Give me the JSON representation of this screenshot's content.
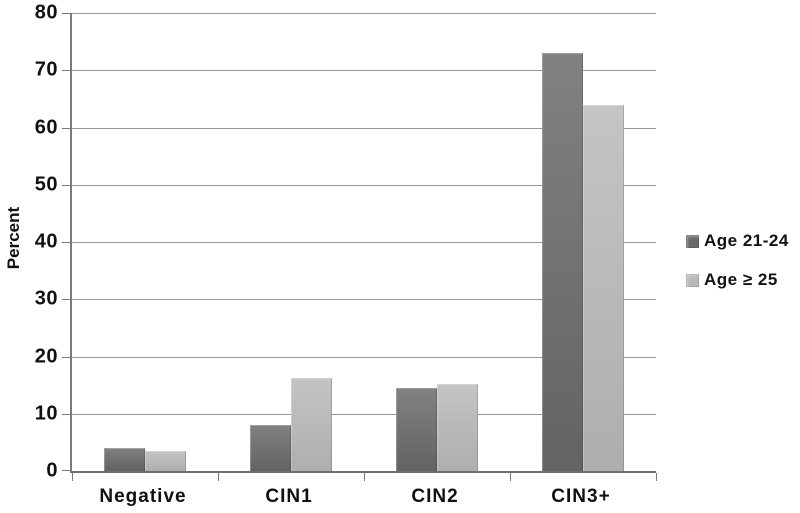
{
  "chart_data": {
    "type": "bar",
    "title": "",
    "ylabel": "Percent",
    "xlabel": "",
    "ylim": [
      0,
      80
    ],
    "yticks": [
      0,
      10,
      20,
      30,
      40,
      50,
      60,
      70,
      80
    ],
    "grid": true,
    "legend_position": "right",
    "categories": [
      "Negative",
      "CIN1",
      "CIN2",
      "CIN3+"
    ],
    "series": [
      {
        "name": "Age 21-24",
        "color": "#696969",
        "values": [
          4,
          8,
          14.5,
          73
        ]
      },
      {
        "name": "Age ≥ 25",
        "color": "#b9b9b9",
        "values": [
          3.5,
          16.3,
          15.2,
          64
        ]
      }
    ]
  }
}
